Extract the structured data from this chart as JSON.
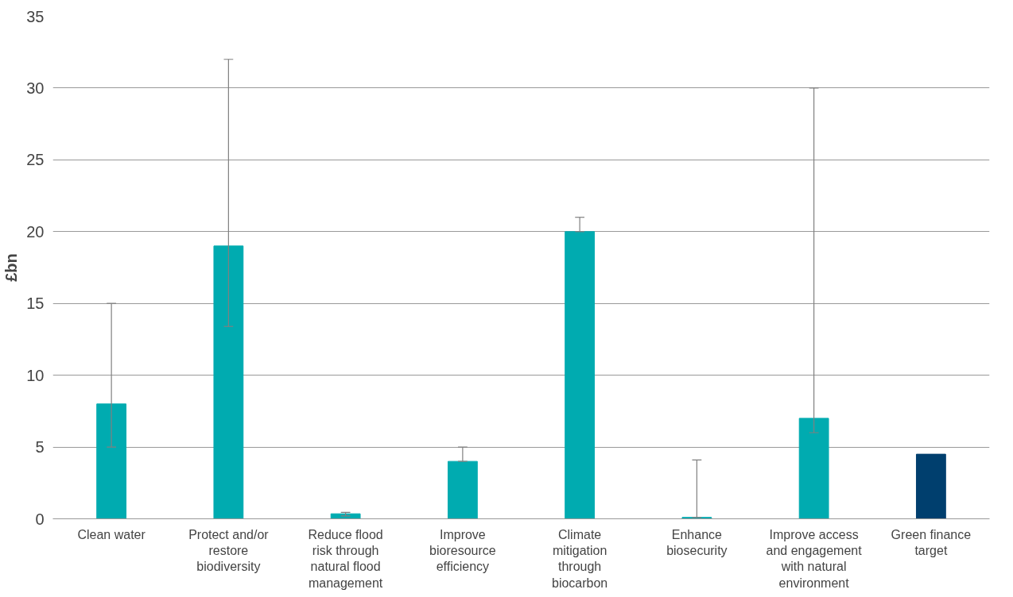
{
  "chart_data": {
    "type": "bar",
    "ylabel": "£bn",
    "categories": [
      "Clean water",
      "Protect and/or restore biodiversity",
      "Reduce flood risk through natural flood management",
      "Improve bioresource efficiency",
      "Climate mitigation through biocarbon",
      "Enhance biosecurity",
      "Improve access and engagement with natural environment",
      "Green finance target"
    ],
    "values": [
      8,
      19,
      0.35,
      4,
      20,
      0.1,
      7,
      4.5
    ],
    "colors": [
      "#00abb0",
      "#00abb0",
      "#00abb0",
      "#00abb0",
      "#00abb0",
      "#00abb0",
      "#00abb0",
      "#003f6e"
    ],
    "errors": [
      [
        5,
        15
      ],
      [
        13.4,
        32
      ],
      [
        0.2,
        0.45
      ],
      [
        4,
        5
      ],
      [
        20,
        21
      ],
      [
        0.1,
        4.1
      ],
      [
        6,
        30
      ],
      null
    ],
    "ylim": [
      0,
      35
    ],
    "yticks": [
      0,
      5,
      10,
      15,
      20,
      25,
      30,
      35
    ],
    "grid": "y"
  }
}
